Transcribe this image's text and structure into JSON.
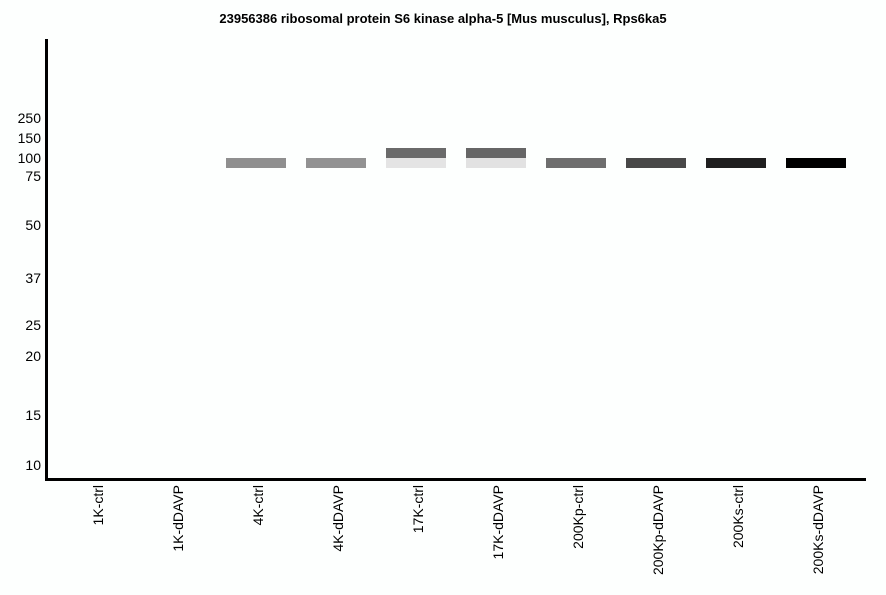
{
  "style": {
    "background": "#fdfffe",
    "axis_color": "#000000",
    "text_color": "#000000"
  },
  "chart_data": {
    "type": "heatmap",
    "variant": "western-blot-style gel band intensity plot",
    "title": "23956386 ribosomal protein S6 kinase alpha-5 [Mus musculus], Rps6ka5",
    "xlabel": "",
    "ylabel": "",
    "grid": false,
    "legend": false,
    "y_axis_units": "molecular weight markers (kDa), gel migration scale (nonlinear)",
    "y_tick_labels": [
      "250",
      "150",
      "100",
      "75",
      "50",
      "37",
      "25",
      "20",
      "15",
      "10"
    ],
    "x_categories": [
      "1K-ctrl",
      "1K-dDAVP",
      "4K-ctrl",
      "4K-dDAVP",
      "17K-ctrl",
      "17K-dDAVP",
      "200Kp-ctrl",
      "200Kp-dDAVP",
      "200Ks-ctrl",
      "200Ks-dDAVP"
    ],
    "lanes": [
      {
        "label": "1K-ctrl",
        "bands": []
      },
      {
        "label": "1K-dDAVP",
        "bands": []
      },
      {
        "label": "4K-ctrl",
        "bands": [
          {
            "position": "main",
            "approx_mw_kda": 90,
            "color": "#8f8f8f"
          }
        ]
      },
      {
        "label": "4K-dDAVP",
        "bands": [
          {
            "position": "main",
            "approx_mw_kda": 90,
            "color": "#929292"
          }
        ]
      },
      {
        "label": "17K-ctrl",
        "bands": [
          {
            "position": "upper",
            "approx_mw_kda": 105,
            "color": "#6a6a6a"
          },
          {
            "position": "main",
            "approx_mw_kda": 90,
            "color": "#e4e4e4"
          }
        ]
      },
      {
        "label": "17K-dDAVP",
        "bands": [
          {
            "position": "upper",
            "approx_mw_kda": 105,
            "color": "#666666"
          },
          {
            "position": "main",
            "approx_mw_kda": 90,
            "color": "#e2e2e2"
          }
        ]
      },
      {
        "label": "200Kp-ctrl",
        "bands": [
          {
            "position": "main",
            "approx_mw_kda": 90,
            "color": "#6e6e6e"
          }
        ]
      },
      {
        "label": "200Kp-dDAVP",
        "bands": [
          {
            "position": "main",
            "approx_mw_kda": 90,
            "color": "#484848"
          }
        ]
      },
      {
        "label": "200Ks-ctrl",
        "bands": [
          {
            "position": "main",
            "approx_mw_kda": 90,
            "color": "#1f1f1f"
          }
        ]
      },
      {
        "label": "200Ks-dDAVP",
        "bands": [
          {
            "position": "main",
            "approx_mw_kda": 90,
            "color": "#000000"
          }
        ]
      }
    ]
  }
}
